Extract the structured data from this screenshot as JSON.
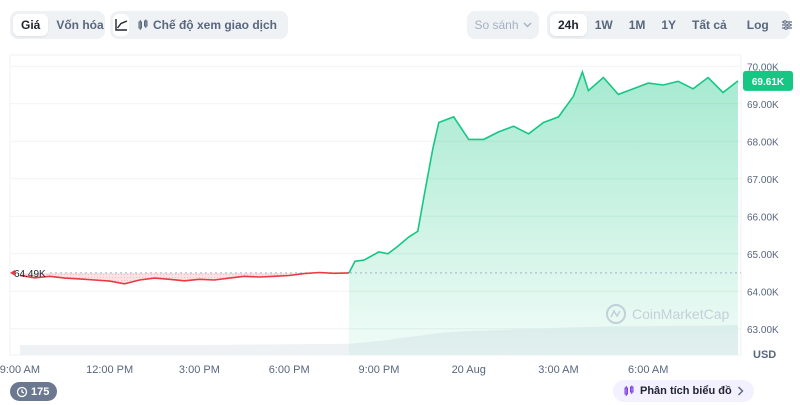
{
  "toolbar": {
    "tabs": [
      {
        "label": "Giá"
      },
      {
        "label": "Vốn hóa"
      }
    ],
    "trading_mode_label": "Chế độ xem giao dịch",
    "compare_label": "So sánh",
    "ranges": [
      {
        "label": "24h"
      },
      {
        "label": "1W"
      },
      {
        "label": "1M"
      },
      {
        "label": "1Y"
      },
      {
        "label": "Tất cả"
      }
    ],
    "log_label": "Log"
  },
  "colors": {
    "up": "#16c784",
    "down": "#ea3943",
    "grid": "#eff2f5",
    "text": "#58667e"
  },
  "chart_data": {
    "type": "area",
    "currency_label": "USD",
    "y_ticks": [
      "70.00K",
      "69.00K",
      "68.00K",
      "67.00K",
      "66.00K",
      "65.00K",
      "64.00K",
      "63.00K"
    ],
    "y_tick_values": [
      70000,
      69000,
      68000,
      67000,
      66000,
      65000,
      64000,
      63000
    ],
    "ylim": [
      62300,
      70300
    ],
    "x_tick_labels": [
      "9:00 AM",
      "12:00 PM",
      "3:00 PM",
      "6:00 PM",
      "9:00 PM",
      "20 Aug",
      "3:00 AM",
      "6:00 AM"
    ],
    "x_tick_values": [
      0,
      3,
      6,
      9,
      12,
      15,
      18,
      21
    ],
    "xlim": [
      -0.33,
      24.1
    ],
    "baseline": {
      "value": 64490,
      "label": "64.49K"
    },
    "current": {
      "value": 69610,
      "label": "69.61K"
    },
    "series": [
      {
        "x": [
          0,
          0.5,
          1,
          1.5,
          2,
          2.5,
          3,
          3.5,
          4,
          4.5,
          5,
          5.5,
          6,
          6.5,
          7,
          7.5,
          8,
          8.5,
          9,
          9.5,
          10,
          10.5,
          11,
          11.2,
          11.5,
          12,
          12.3,
          12.6,
          13,
          13.3,
          13.5,
          13.8,
          14,
          14.5,
          15,
          15.5,
          16,
          16.5,
          17,
          17.5,
          18,
          18.5,
          18.8,
          19,
          19.5,
          20,
          20.5,
          21,
          21.5,
          22,
          22.5,
          23,
          23.5,
          24
        ],
        "y": [
          64420,
          64360,
          64400,
          64350,
          64330,
          64300,
          64270,
          64200,
          64300,
          64350,
          64320,
          64280,
          64320,
          64300,
          64350,
          64400,
          64380,
          64400,
          64420,
          64470,
          64500,
          64480,
          64490,
          64800,
          64830,
          65050,
          65000,
          65180,
          65450,
          65600,
          66500,
          67800,
          68500,
          68650,
          68050,
          68050,
          68250,
          68400,
          68200,
          68500,
          68650,
          69200,
          69850,
          69350,
          69700,
          69250,
          69400,
          69550,
          69500,
          69600,
          69400,
          69700,
          69300,
          69610
        ]
      }
    ],
    "volume": {
      "x": [
        0,
        6,
        11,
        12,
        13,
        14,
        15,
        16,
        17,
        18,
        19,
        20,
        21,
        22,
        23,
        24
      ],
      "y": [
        0.25,
        0.25,
        0.28,
        0.35,
        0.45,
        0.55,
        0.6,
        0.62,
        0.65,
        0.68,
        0.7,
        0.72,
        0.72,
        0.73,
        0.73,
        0.75
      ]
    },
    "watermark": "CoinMarketCap"
  },
  "footer": {
    "badge_count": "175",
    "analyze_label": "Phân tích biểu đồ"
  }
}
